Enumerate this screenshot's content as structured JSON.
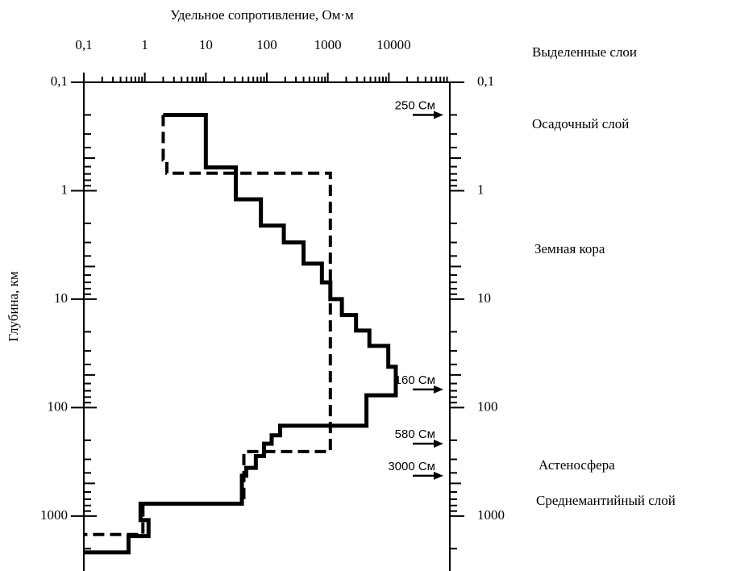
{
  "chart_data": {
    "type": "profile",
    "x_label": "Удельное сопротивление, Ом·м",
    "y_label": "Глубина, км",
    "x_log": true,
    "y_log": true,
    "y_inverted": true,
    "minor_ticks": true,
    "xlim": [
      0.1,
      100000
    ],
    "ylim": [
      0.1,
      3000
    ],
    "xticks": [
      {
        "value": 0.1,
        "label": "0,1"
      },
      1,
      10,
      100,
      1000,
      10000
    ],
    "yticks": [
      {
        "value": 0.1,
        "label": "0,1"
      },
      1,
      10,
      100,
      1000
    ],
    "series": [
      {
        "color": "#000000",
        "dashed": false,
        "resistivity": [
          2,
          10,
          10,
          31,
          31,
          80,
          80,
          190,
          190,
          400,
          400,
          800,
          800,
          1100,
          1100,
          1700,
          1700,
          2900,
          2900,
          4800,
          4800,
          9800,
          9800,
          13000,
          13000,
          4300,
          4300,
          165,
          165,
          120,
          120,
          90,
          90,
          66,
          66,
          46,
          46,
          39,
          39,
          0.85,
          0.85,
          1.15,
          1.15,
          0.54,
          0.54,
          0.1
        ],
        "depth": [
          0.2,
          0.2,
          0.61,
          0.61,
          1.2,
          1.2,
          2.1,
          2.1,
          3,
          3,
          4.7,
          4.7,
          7,
          7,
          10,
          10,
          14,
          14,
          19.5,
          19.5,
          27,
          27,
          42,
          42,
          77,
          77,
          147,
          147,
          180,
          180,
          215,
          215,
          280,
          280,
          360,
          360,
          425,
          425,
          770,
          770,
          1090,
          1090,
          1530,
          1530,
          2160,
          2160
        ]
      },
      {
        "color": "#000000",
        "dashed": true,
        "resistivity": [
          2,
          2,
          2.3,
          2.3,
          1100,
          1100,
          42,
          42,
          0.93,
          0.93,
          0.1
        ],
        "depth": [
          0.2,
          0.52,
          0.52,
          0.69,
          0.69,
          254,
          254,
          770,
          770,
          1480,
          1480
        ]
      }
    ],
    "annotations": [
      {
        "text": "250 См",
        "depth": 0.2
      },
      {
        "text": "160 См",
        "depth": 68
      },
      {
        "text": "580 См",
        "depth": 215
      },
      {
        "text": "3000 См",
        "depth": 425
      }
    ],
    "layers_title": "Выделенные слои",
    "layers": [
      "Осадочный слой",
      "Земная кора",
      "Астеносфера",
      "Среднемантийный слой"
    ]
  }
}
